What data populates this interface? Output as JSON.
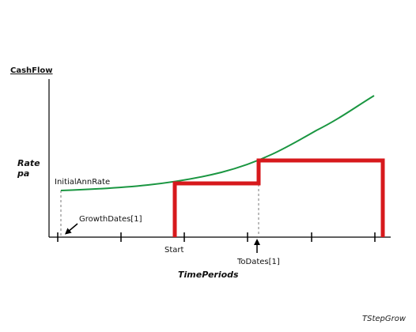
{
  "labels": {
    "y_axis_title": "CashFlow",
    "rate_line1": "Rate",
    "rate_line2": "pa",
    "initial_rate": "InitialAnnRate",
    "growth_dates": "GrowthDates[1]",
    "start": "Start",
    "to_dates": "ToDates[1]",
    "x_axis_title": "TimePeriods",
    "caption": "TStepGrow"
  },
  "colors": {
    "axis": "#000000",
    "growth_curve": "#1a9641",
    "step_schedule": "#d7191c",
    "guide": "#777777"
  }
}
